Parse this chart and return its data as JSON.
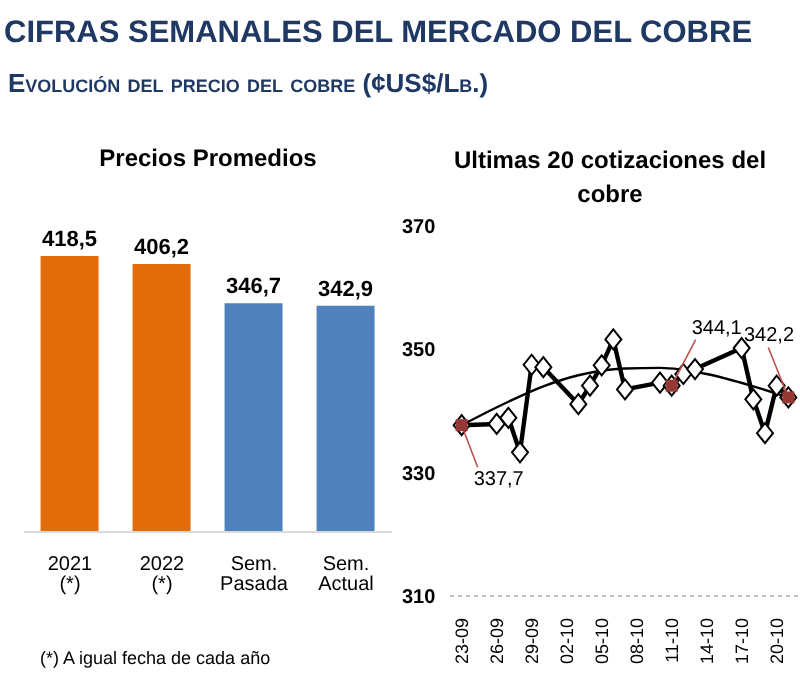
{
  "chart_data": [
    {
      "type": "other",
      "title": "CIFRAS SEMANALES DEL MERCADO DEL COBRE",
      "subtitle": "Evolución del precio del cobre (¢US$/Lb.)"
    },
    {
      "type": "bar",
      "title": "Precios Promedios",
      "categories": [
        "2021 (*)",
        "2022 (*)",
        "Sem. Pasada",
        "Sem. Actual"
      ],
      "values": [
        418.5,
        406.2,
        346.7,
        342.9
      ],
      "colors": [
        "#e36c0a",
        "#e36c0a",
        "#4f81bd",
        "#4f81bd"
      ],
      "value_labels": [
        "418,5",
        "406,2",
        "346,7",
        "342,9"
      ],
      "annotations": [
        "(*) A igual fecha de cada año"
      ]
    },
    {
      "type": "line",
      "title": "Ultimas 20 cotizaciones del cobre",
      "x": [
        "--09-23",
        "--09-26",
        "--09-27",
        "--09-28",
        "--09-29",
        "--09-30",
        "--10-03",
        "--10-04",
        "--10-05",
        "--10-06",
        "--10-07",
        "--10-10",
        "--10-11",
        "--10-12",
        "--10-13",
        "--10-17",
        "--10-18",
        "--10-19",
        "--10-20",
        "--10-21"
      ],
      "series": [
        {
          "type": "line",
          "color": "#000000",
          "marker": "diamond",
          "values": [
            337.7,
            337.9,
            338.9,
            333.3,
            347.5,
            347.1,
            341.1,
            344.1,
            347.4,
            351.6,
            343.5,
            344.6,
            344.1,
            346.0,
            346.8,
            350.2,
            341.9,
            336.4,
            344.1,
            342.2
          ]
        },
        {
          "type": "line",
          "color": "#000000",
          "marker": "none",
          "x": [
            "--09-23",
            "--09-27",
            "--09-30",
            "--10-03",
            "--10-07",
            "--10-10",
            "--10-14",
            "--10-18",
            "--10-21"
          ],
          "values": [
            337.7,
            341.5,
            344.0,
            345.8,
            346.9,
            347.0,
            346.0,
            344.0,
            342.2
          ]
        }
      ],
      "xlim": [
        "--09-22",
        "--10-22"
      ],
      "xticks": [
        {
          "value": "--09-23",
          "label": "23-09"
        },
        {
          "value": "--09-26",
          "label": "26-09"
        },
        {
          "value": "--09-29",
          "label": "29-09"
        },
        {
          "value": "--10-02",
          "label": "02-10"
        },
        {
          "value": "--10-05",
          "label": "05-10"
        },
        {
          "value": "--10-08",
          "label": "08-10"
        },
        {
          "value": "--10-11",
          "label": "11-10"
        },
        {
          "value": "--10-14",
          "label": "14-10"
        },
        {
          "value": "--10-17",
          "label": "17-10"
        },
        {
          "value": "--10-20",
          "label": "20-10"
        }
      ],
      "ylim": [
        310,
        370
      ],
      "yticks": [
        310,
        330,
        350,
        370
      ],
      "annotations": [
        {
          "text": "337,7",
          "x": "--09-23",
          "y": 337.7
        },
        {
          "text": "344,1",
          "x": "--10-11",
          "y": 344.1
        },
        {
          "text": "342,2",
          "x": "--10-21",
          "y": 342.2
        }
      ]
    }
  ]
}
